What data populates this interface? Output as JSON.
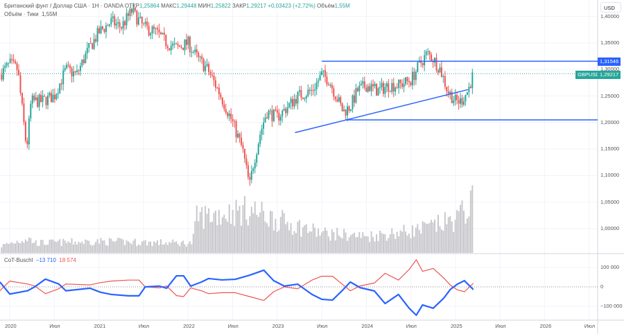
{
  "header": {
    "symbol_title": "Британский фунт / Доллар США · 1H · OANDA",
    "open_label": "ОТКР",
    "open": "1,25864",
    "high_label": "МАКС",
    "high": "1,29448",
    "low_label": "МИН",
    "low": "1,25822",
    "close_label": "ЗАКР",
    "close": "1,29217",
    "change": "+0,03423 (+2,72%)",
    "volume_label": "Объём",
    "volume": "1,55M"
  },
  "volume_legend": {
    "label": "Объём · Тики",
    "value": "1,55M"
  },
  "cot_legend": {
    "label": "CoT-Buschl",
    "blue_value": "−13 710",
    "red_value": "18 574"
  },
  "axis": {
    "currency": "USD",
    "symbol_tag": "GBPUSD",
    "price_tag": "1,29217",
    "level_tag": "1,31546",
    "price_ticks": [
      "1,40000",
      "1,35000",
      "1,30000",
      "1,25000",
      "1,20000",
      "1,15000",
      "1,10000",
      "1,05000",
      "1,00000"
    ],
    "cot_ticks": [
      "100 000",
      "0",
      "−100 000"
    ],
    "time_ticks": [
      "2020",
      "Июл",
      "2021",
      "Июл",
      "2022",
      "Июл",
      "2023",
      "Июл",
      "2024",
      "Июл",
      "2025",
      "Июл",
      "2026",
      "Июл"
    ]
  },
  "colors": {
    "up": "#26a69a",
    "down": "#ef5350",
    "line": "#2962ff",
    "volume": "#c8c8cc"
  },
  "chart_data": {
    "type": "candlestick",
    "price_ticks_values": [
      1.4,
      1.35,
      1.3,
      1.25,
      1.2,
      1.15,
      1.1,
      1.05,
      1.0
    ],
    "time_ticks_values": [
      2020,
      2020.5,
      2021,
      2021.5,
      2022,
      2022.5,
      2023,
      2023.5,
      2024,
      2024.5,
      2025,
      2025.5,
      2026,
      2026.5
    ],
    "price_path": [
      [
        2019.89,
        1.29
      ],
      [
        2020.0,
        1.31
      ],
      [
        2020.09,
        1.3
      ],
      [
        2020.19,
        1.15
      ],
      [
        2020.24,
        1.24
      ],
      [
        2020.36,
        1.24
      ],
      [
        2020.5,
        1.25
      ],
      [
        2020.63,
        1.3
      ],
      [
        2020.75,
        1.29
      ],
      [
        2020.86,
        1.33
      ],
      [
        2021.0,
        1.37
      ],
      [
        2021.14,
        1.39
      ],
      [
        2021.25,
        1.38
      ],
      [
        2021.37,
        1.41
      ],
      [
        2021.5,
        1.38
      ],
      [
        2021.64,
        1.37
      ],
      [
        2021.76,
        1.35
      ],
      [
        2021.87,
        1.34
      ],
      [
        2022.0,
        1.35
      ],
      [
        2022.11,
        1.32
      ],
      [
        2022.22,
        1.3
      ],
      [
        2022.34,
        1.26
      ],
      [
        2022.5,
        1.2
      ],
      [
        2022.61,
        1.15
      ],
      [
        2022.69,
        1.08
      ],
      [
        2022.73,
        1.12
      ],
      [
        2022.81,
        1.18
      ],
      [
        2022.88,
        1.22
      ],
      [
        2023.0,
        1.21
      ],
      [
        2023.12,
        1.23
      ],
      [
        2023.23,
        1.25
      ],
      [
        2023.39,
        1.26
      ],
      [
        2023.5,
        1.29
      ],
      [
        2023.58,
        1.28
      ],
      [
        2023.66,
        1.25
      ],
      [
        2023.74,
        1.22
      ],
      [
        2023.82,
        1.23
      ],
      [
        2023.9,
        1.26
      ],
      [
        2024.0,
        1.27
      ],
      [
        2024.13,
        1.26
      ],
      [
        2024.25,
        1.27
      ],
      [
        2024.36,
        1.27
      ],
      [
        2024.5,
        1.28
      ],
      [
        2024.6,
        1.31
      ],
      [
        2024.68,
        1.33
      ],
      [
        2024.75,
        1.32
      ],
      [
        2024.83,
        1.3
      ],
      [
        2024.91,
        1.26
      ],
      [
        2025.0,
        1.24
      ],
      [
        2025.06,
        1.24
      ],
      [
        2025.14,
        1.26
      ],
      [
        2025.2,
        1.292
      ]
    ],
    "volume_millions": [
      [
        2019.89,
        0.2
      ],
      [
        2020.2,
        0.45
      ],
      [
        2020.3,
        0.3
      ],
      [
        2021.0,
        0.35
      ],
      [
        2021.9,
        0.3
      ],
      [
        2022.05,
        0.3
      ],
      [
        2022.1,
        1.1
      ],
      [
        2022.7,
        1.3
      ],
      [
        2023.0,
        1.0
      ],
      [
        2023.5,
        0.6
      ],
      [
        2024.0,
        0.5
      ],
      [
        2024.6,
        0.7
      ],
      [
        2025.0,
        1.0
      ],
      [
        2025.2,
        1.55
      ]
    ],
    "levels": [
      {
        "price": 1.31546,
        "from": 2023.5
      },
      {
        "price": 1.205,
        "from": 2023.77
      }
    ],
    "trendline": [
      [
        2023.2,
        1.181
      ],
      [
        2025.14,
        1.262
      ]
    ],
    "last_price": 1.29217,
    "cot_blue": [
      [
        2019.89,
        25000
      ],
      [
        2020.0,
        -37000
      ],
      [
        2020.2,
        -20000
      ],
      [
        2020.28,
        0
      ],
      [
        2020.4,
        40000
      ],
      [
        2020.55,
        15000
      ],
      [
        2020.63,
        -20000
      ],
      [
        2020.9,
        -7000
      ],
      [
        2021.02,
        -28000
      ],
      [
        2021.14,
        -39000
      ],
      [
        2021.33,
        -46000
      ],
      [
        2021.45,
        -46000
      ],
      [
        2021.52,
        0
      ],
      [
        2021.68,
        4000
      ],
      [
        2021.76,
        -7000
      ],
      [
        2021.87,
        57000
      ],
      [
        2021.95,
        57000
      ],
      [
        2022.03,
        4000
      ],
      [
        2022.15,
        25000
      ],
      [
        2022.23,
        43000
      ],
      [
        2022.38,
        36000
      ],
      [
        2022.53,
        39000
      ],
      [
        2022.69,
        60000
      ],
      [
        2022.85,
        86000
      ],
      [
        2022.96,
        32000
      ],
      [
        2023.08,
        4000
      ],
      [
        2023.23,
        14000
      ],
      [
        2023.39,
        -39000
      ],
      [
        2023.5,
        -64000
      ],
      [
        2023.62,
        -68000
      ],
      [
        2023.74,
        -14000
      ],
      [
        2023.82,
        25000
      ],
      [
        2023.93,
        -4000
      ],
      [
        2024.09,
        -21000
      ],
      [
        2024.21,
        -86000
      ],
      [
        2024.36,
        -39000
      ],
      [
        2024.48,
        -110000
      ],
      [
        2024.56,
        -146000
      ],
      [
        2024.63,
        -93000
      ],
      [
        2024.75,
        -110000
      ],
      [
        2024.87,
        -57000
      ],
      [
        2024.94,
        -14000
      ],
      [
        2025.02,
        14000
      ],
      [
        2025.1,
        32000
      ],
      [
        2025.2,
        -14000
      ]
    ],
    "cot_red": [
      [
        2019.89,
        -20000
      ],
      [
        2020.0,
        30000
      ],
      [
        2020.2,
        15000
      ],
      [
        2020.28,
        5000
      ],
      [
        2020.4,
        -35000
      ],
      [
        2020.55,
        -10000
      ],
      [
        2020.63,
        15000
      ],
      [
        2020.9,
        10000
      ],
      [
        2021.02,
        22000
      ],
      [
        2021.14,
        30000
      ],
      [
        2021.33,
        35000
      ],
      [
        2021.45,
        35000
      ],
      [
        2021.52,
        0
      ],
      [
        2021.68,
        -5000
      ],
      [
        2021.76,
        5000
      ],
      [
        2021.87,
        -45000
      ],
      [
        2021.95,
        -50000
      ],
      [
        2022.03,
        -5000
      ],
      [
        2022.15,
        -20000
      ],
      [
        2022.23,
        -35000
      ],
      [
        2022.38,
        -30000
      ],
      [
        2022.53,
        -30000
      ],
      [
        2022.69,
        -50000
      ],
      [
        2022.85,
        -70000
      ],
      [
        2022.96,
        -25000
      ],
      [
        2023.08,
        0
      ],
      [
        2023.23,
        -10000
      ],
      [
        2023.39,
        35000
      ],
      [
        2023.5,
        55000
      ],
      [
        2023.62,
        55000
      ],
      [
        2023.74,
        10000
      ],
      [
        2023.82,
        -20000
      ],
      [
        2023.93,
        5000
      ],
      [
        2024.09,
        20000
      ],
      [
        2024.21,
        70000
      ],
      [
        2024.36,
        35000
      ],
      [
        2024.48,
        90000
      ],
      [
        2024.56,
        140000
      ],
      [
        2024.63,
        80000
      ],
      [
        2024.75,
        95000
      ],
      [
        2024.87,
        45000
      ],
      [
        2024.94,
        10000
      ],
      [
        2025.02,
        -15000
      ],
      [
        2025.1,
        -25000
      ],
      [
        2025.2,
        18574
      ]
    ]
  }
}
